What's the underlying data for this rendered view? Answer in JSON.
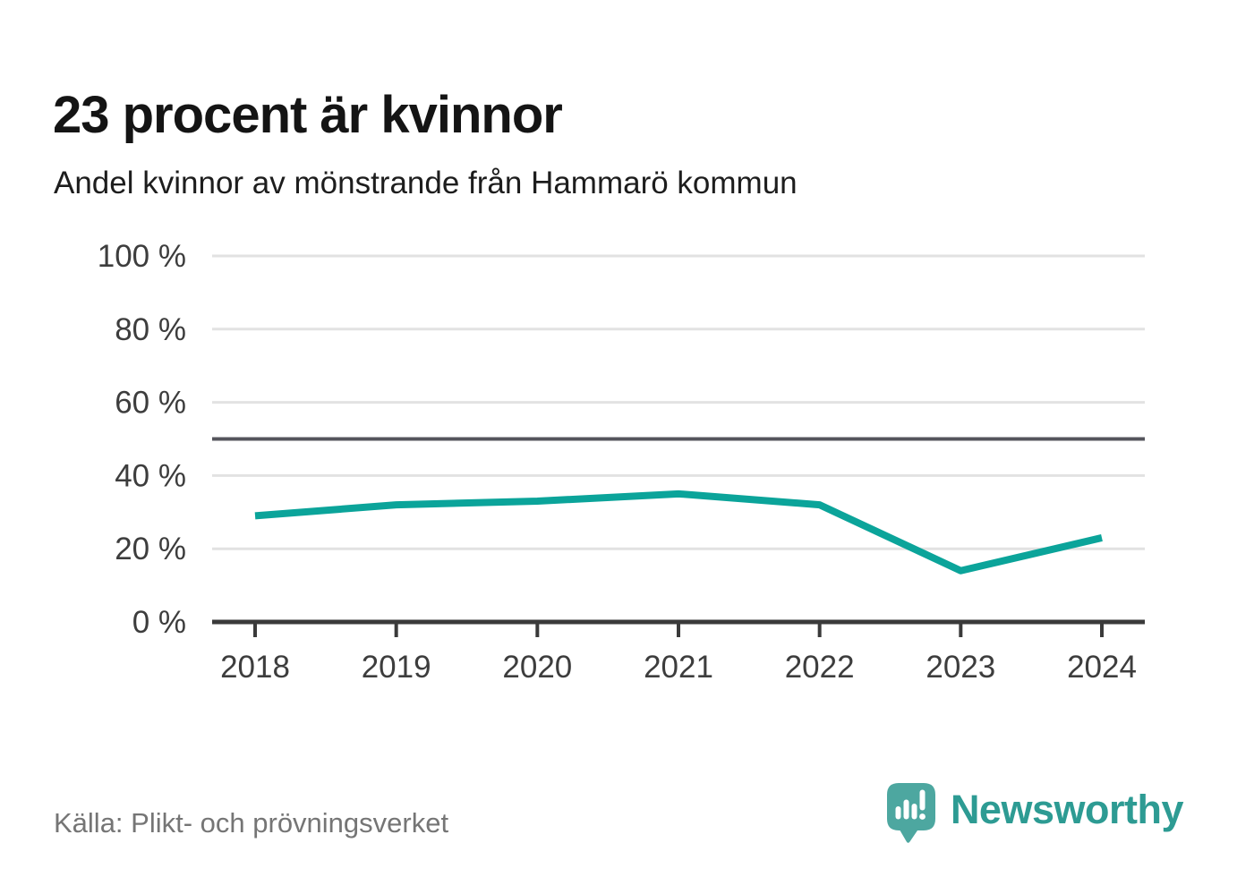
{
  "title": "23 procent är kvinnor",
  "subtitle": "Andel kvinnor av mönstrande från Hammarö kommun",
  "source": "Källa: Plikt- och prövningsverket",
  "brand": {
    "name": "Newsworthy",
    "icon": "newsworthy-speech-bubble-bar-chart",
    "icon_color": "#4da7a0",
    "text_color": "#2d9b93"
  },
  "chart_data": {
    "type": "line",
    "title": "23 procent är kvinnor",
    "subtitle": "Andel kvinnor av mönstrande från Hammarö kommun",
    "x": [
      "2018",
      "2019",
      "2020",
      "2021",
      "2022",
      "2023",
      "2024"
    ],
    "series": [
      {
        "name": "Andel kvinnor av mönstrande",
        "values": [
          29,
          32,
          33,
          35,
          32,
          14,
          23
        ]
      }
    ],
    "xlabel": "",
    "ylabel": "",
    "ylim": [
      0,
      100
    ],
    "yticks": [
      0,
      20,
      40,
      60,
      80,
      100
    ],
    "ytick_suffix": " %",
    "reference_line": 50,
    "grid": true,
    "legend_position": "none",
    "colors": {
      "line": "#0ba49a",
      "grid": "#e2e2e2",
      "reference_line": "#55555c",
      "axis": "#3a3a3a",
      "tick_label": "#3d3d3d"
    }
  }
}
